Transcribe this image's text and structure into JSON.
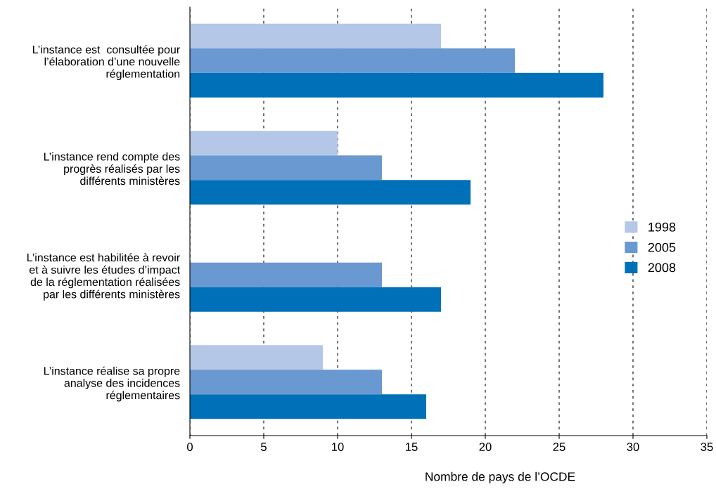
{
  "chart_data": {
    "type": "bar",
    "orientation": "horizontal",
    "xlabel": "Nombre de pays de l’OCDE",
    "categories": [
      "L’instance est  consultée pour\nl’élaboration d’une nouvelle\nréglementation",
      "L’instance rend compte des\nprogrès réalisés par les\ndifférents ministères",
      "L’instance est habilitée à revoir\net à suivre les études d’impact\nde la réglementation réalisées\npar les différents ministères",
      "L’instance réalise sa propre\nanalyse des incidences\nréglementaires"
    ],
    "series": [
      {
        "name": "1998",
        "color": "#b4c7e7",
        "values": [
          17,
          10,
          0,
          9
        ]
      },
      {
        "name": "2005",
        "color": "#6a98d0",
        "values": [
          22,
          13,
          13,
          13
        ]
      },
      {
        "name": "2008",
        "color": "#0070b8",
        "values": [
          28,
          19,
          17,
          16
        ]
      }
    ],
    "xlim": [
      0,
      35
    ],
    "xticks": [
      0,
      5,
      10,
      15,
      20,
      25,
      30,
      35
    ],
    "grid": "x",
    "legend": "right"
  }
}
